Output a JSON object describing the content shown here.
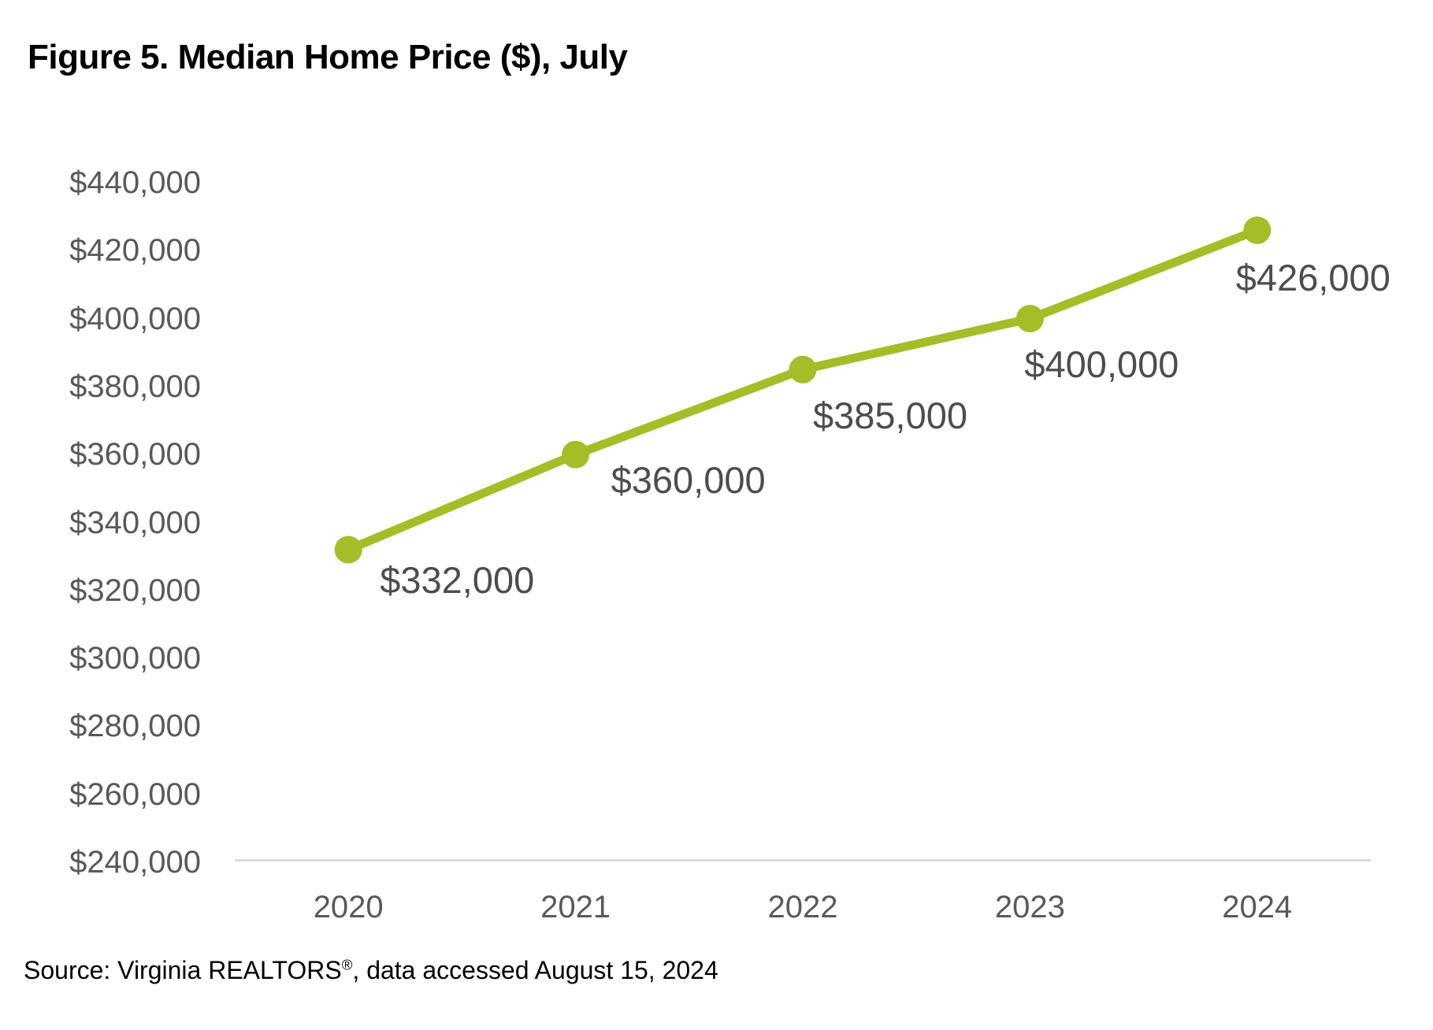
{
  "figure": {
    "title": "Figure 5. Median Home Price ($), July",
    "source": {
      "prefix": "Source: Virginia REALTORS",
      "registered_mark": "®",
      "suffix": ", data accessed August 15, 2024"
    }
  },
  "chart_data": {
    "type": "line",
    "title": "Figure 5. Median Home Price ($), July",
    "categories": [
      "2020",
      "2021",
      "2022",
      "2023",
      "2024"
    ],
    "series": [
      {
        "name": "Median Home Price ($), July",
        "values": [
          332000,
          360000,
          385000,
          400000,
          426000
        ],
        "data_labels": [
          "$332,000",
          "$360,000",
          "$385,000",
          "$400,000",
          "$426,000"
        ]
      }
    ],
    "xlabel": "",
    "ylabel": "",
    "ylim": [
      240000,
      440000
    ],
    "y_tick_step": 20000,
    "y_tick_labels": [
      "$240,000",
      "$260,000",
      "$280,000",
      "$300,000",
      "$320,000",
      "$340,000",
      "$360,000",
      "$380,000",
      "$400,000",
      "$420,000",
      "$440,000"
    ],
    "grid": false,
    "legend": "none",
    "colors": {
      "line": "#A3BE27",
      "marker": "#A3BE27",
      "axis_line": "#D9D9D9",
      "tick_label": "#595959",
      "data_label": "#4d4d4d"
    }
  }
}
